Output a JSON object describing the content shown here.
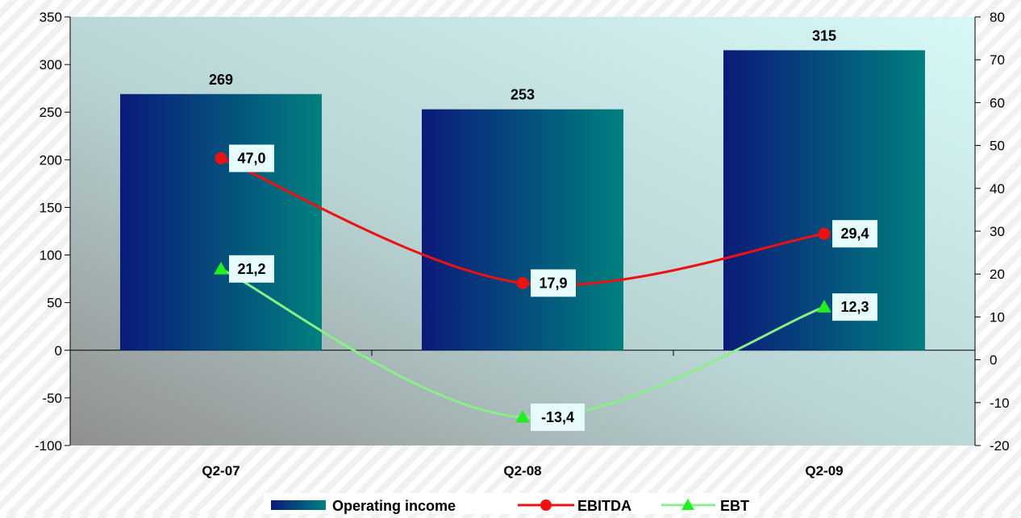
{
  "chart_data": {
    "type": "bar",
    "categories": [
      "Q2-07",
      "Q2-08",
      "Q2-09"
    ],
    "series": [
      {
        "name": "Operating income",
        "type": "bar",
        "axis": "left",
        "values": [
          269,
          253,
          315
        ],
        "labels": [
          "269",
          "253",
          "315"
        ]
      },
      {
        "name": "EBITDA",
        "type": "line",
        "axis": "right",
        "marker": "circle",
        "color": "#ee1111",
        "values": [
          47.0,
          17.9,
          29.4
        ],
        "labels": [
          "47,0",
          "17,9",
          "29,4"
        ]
      },
      {
        "name": "EBT",
        "type": "line",
        "axis": "right",
        "marker": "triangle",
        "color": "#88f088",
        "values": [
          21.2,
          -13.4,
          12.3
        ],
        "labels": [
          "21,2",
          "-13,4",
          "12,3"
        ]
      }
    ],
    "y_left": {
      "ylim": [
        -100,
        350
      ],
      "ticks": [
        "-100",
        "-50",
        "0",
        "50",
        "100",
        "150",
        "200",
        "250",
        "300",
        "350"
      ],
      "tick_values": [
        -100,
        -50,
        0,
        50,
        100,
        150,
        200,
        250,
        300,
        350
      ]
    },
    "y_right": {
      "ylim": [
        -20,
        80
      ],
      "ticks": [
        "-20",
        "-10",
        "0",
        "10",
        "20",
        "30",
        "40",
        "50",
        "60",
        "70",
        "80"
      ],
      "tick_values": [
        -20,
        -10,
        0,
        10,
        20,
        30,
        40,
        50,
        60,
        70,
        80
      ]
    },
    "legend_position": "bottom-center",
    "bar_gradient": [
      "#0a1a7a",
      "#00807e"
    ]
  }
}
